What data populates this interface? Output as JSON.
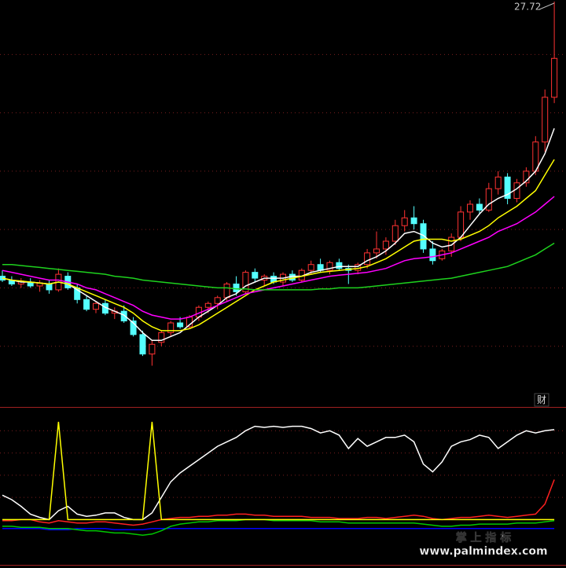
{
  "chart_data": [
    {
      "type": "candlestick",
      "max_label": "27.72",
      "up_color": "#ff3232",
      "down_color": "#54ffff",
      "ylim": [
        7,
        27.8
      ],
      "yticks": [
        10,
        13,
        16,
        19,
        22,
        25
      ],
      "grid": true,
      "open": [
        13.6,
        13.4,
        13.2,
        13.3,
        13.1,
        13.2,
        12.9,
        13.6,
        13.0,
        12.4,
        11.9,
        12.2,
        11.7,
        11.8,
        11.3,
        10.6,
        9.6,
        10.2,
        10.7,
        11.2,
        11.0,
        11.5,
        12.0,
        12.2,
        12.5,
        13.2,
        12.8,
        13.8,
        13.4,
        13.6,
        13.3,
        13.7,
        13.4,
        13.9,
        14.2,
        13.9,
        14.3,
        14.0,
        13.9,
        14.2,
        14.8,
        15.0,
        15.4,
        16.2,
        16.6,
        16.3,
        15.0,
        14.5,
        14.9,
        15.6,
        16.9,
        17.3,
        17.0,
        18.1,
        18.7,
        17.6,
        18.4,
        19.0,
        20.5,
        22.8
      ],
      "high": [
        13.9,
        13.6,
        13.5,
        13.5,
        13.4,
        13.4,
        14.0,
        13.8,
        13.2,
        12.6,
        12.3,
        12.4,
        12.0,
        12.1,
        11.5,
        10.8,
        10.3,
        10.8,
        11.3,
        11.5,
        11.6,
        12.1,
        12.3,
        12.6,
        13.3,
        13.6,
        13.9,
        14.0,
        13.7,
        13.8,
        13.8,
        13.9,
        14.0,
        14.4,
        14.5,
        14.4,
        14.5,
        14.2,
        14.3,
        15.0,
        15.9,
        15.6,
        16.5,
        17.0,
        17.2,
        16.5,
        15.4,
        15.0,
        15.8,
        17.2,
        17.5,
        17.6,
        18.4,
        19.0,
        18.9,
        18.6,
        19.2,
        20.8,
        23.2,
        27.72
      ],
      "low": [
        13.3,
        13.1,
        13.0,
        13.0,
        12.8,
        12.7,
        12.8,
        12.9,
        12.2,
        11.8,
        11.7,
        11.6,
        11.4,
        11.2,
        10.5,
        9.5,
        9.0,
        10.0,
        10.5,
        10.9,
        10.9,
        11.3,
        11.7,
        11.9,
        12.3,
        12.6,
        12.7,
        13.3,
        13.1,
        13.2,
        13.1,
        13.3,
        13.3,
        13.7,
        13.8,
        13.7,
        13.9,
        13.2,
        13.7,
        14.0,
        14.5,
        14.7,
        15.2,
        15.9,
        16.0,
        14.8,
        14.2,
        14.4,
        14.6,
        15.4,
        16.5,
        16.8,
        16.9,
        17.8,
        17.3,
        17.4,
        18.2,
        18.8,
        20.0,
        22.5
      ],
      "close": [
        13.4,
        13.2,
        13.35,
        13.1,
        13.25,
        12.9,
        13.7,
        13.0,
        12.4,
        11.9,
        12.2,
        11.7,
        11.8,
        11.3,
        10.6,
        9.6,
        10.1,
        10.7,
        11.2,
        11.0,
        11.5,
        12.0,
        12.2,
        12.5,
        13.2,
        12.8,
        13.8,
        13.5,
        13.6,
        13.3,
        13.7,
        13.4,
        13.9,
        14.2,
        13.9,
        14.3,
        14.0,
        13.9,
        14.2,
        14.8,
        15.0,
        15.4,
        16.2,
        16.6,
        16.3,
        15.0,
        14.4,
        14.9,
        15.6,
        16.9,
        17.3,
        17.0,
        18.1,
        18.7,
        17.6,
        18.4,
        19.0,
        20.5,
        22.8,
        24.8
      ],
      "series": [
        {
          "color": "#ffffff",
          "values": [
            13.5,
            13.4,
            13.3,
            13.3,
            13.25,
            13.2,
            13.3,
            13.2,
            12.9,
            12.6,
            12.3,
            12.0,
            11.8,
            11.6,
            11.2,
            10.7,
            10.3,
            10.3,
            10.5,
            10.7,
            11.1,
            11.5,
            11.8,
            12.1,
            12.5,
            12.7,
            13.1,
            13.3,
            13.5,
            13.5,
            13.5,
            13.6,
            13.6,
            13.8,
            13.9,
            14.0,
            14.1,
            14.1,
            14.1,
            14.4,
            14.6,
            14.9,
            15.3,
            15.8,
            15.9,
            15.7,
            15.3,
            15.1,
            15.2,
            15.6,
            16.2,
            16.8,
            17.3,
            17.6,
            17.8,
            18.1,
            18.5,
            19.0,
            19.9,
            21.2
          ]
        },
        {
          "color": "#ffff00",
          "values": [
            13.5,
            13.4,
            13.35,
            13.3,
            13.25,
            13.2,
            13.3,
            13.2,
            13.0,
            12.8,
            12.6,
            12.4,
            12.2,
            12.0,
            11.7,
            11.3,
            11.0,
            10.8,
            10.8,
            10.8,
            10.9,
            11.1,
            11.4,
            11.7,
            12.0,
            12.3,
            12.6,
            12.9,
            13.1,
            13.3,
            13.4,
            13.5,
            13.6,
            13.7,
            13.8,
            13.85,
            13.9,
            13.95,
            14.0,
            14.1,
            14.3,
            14.5,
            14.8,
            15.1,
            15.4,
            15.5,
            15.5,
            15.5,
            15.4,
            15.5,
            15.7,
            15.9,
            16.2,
            16.6,
            16.9,
            17.2,
            17.6,
            18.0,
            18.8,
            19.6
          ]
        },
        {
          "color": "#ff00ff",
          "values": [
            13.9,
            13.8,
            13.7,
            13.6,
            13.5,
            13.4,
            13.4,
            13.3,
            13.2,
            13.0,
            12.9,
            12.7,
            12.5,
            12.3,
            12.1,
            11.8,
            11.6,
            11.5,
            11.4,
            11.4,
            11.5,
            11.7,
            11.9,
            12.1,
            12.3,
            12.5,
            12.7,
            12.8,
            12.9,
            13.0,
            13.1,
            13.2,
            13.3,
            13.4,
            13.5,
            13.6,
            13.65,
            13.7,
            13.75,
            13.8,
            13.9,
            14.0,
            14.2,
            14.4,
            14.5,
            14.55,
            14.6,
            14.7,
            14.8,
            15.0,
            15.2,
            15.4,
            15.6,
            15.9,
            16.1,
            16.3,
            16.6,
            16.9,
            17.3,
            17.7
          ]
        },
        {
          "color": "#1ed21e",
          "values": [
            14.2,
            14.2,
            14.15,
            14.1,
            14.05,
            14.0,
            13.95,
            13.9,
            13.85,
            13.8,
            13.75,
            13.7,
            13.6,
            13.55,
            13.5,
            13.4,
            13.35,
            13.3,
            13.25,
            13.2,
            13.15,
            13.1,
            13.05,
            13.0,
            13.0,
            12.95,
            12.95,
            12.9,
            12.9,
            12.9,
            12.9,
            12.9,
            12.9,
            12.9,
            12.95,
            12.95,
            13.0,
            13.0,
            13.0,
            13.05,
            13.1,
            13.15,
            13.2,
            13.25,
            13.3,
            13.35,
            13.4,
            13.45,
            13.5,
            13.6,
            13.7,
            13.8,
            13.9,
            14.0,
            14.1,
            14.3,
            14.5,
            14.7,
            15.0,
            15.3
          ]
        }
      ]
    },
    {
      "type": "line",
      "ylim": [
        -40,
        100
      ],
      "yticks": [
        20,
        40,
        60,
        80
      ],
      "grid": true,
      "series": [
        {
          "color": "#0000ff",
          "values": [
            -8,
            -8,
            -8,
            -8,
            -8,
            -9,
            -9,
            -9,
            -8,
            -8,
            -8,
            -8,
            -9,
            -9,
            -9,
            -9,
            -8,
            -8,
            -8,
            -8,
            -8,
            -8,
            -8,
            -8,
            -8,
            -8,
            -8,
            -8,
            -8,
            -8,
            -8,
            -8,
            -8,
            -8,
            -8,
            -8,
            -8,
            -8,
            -8,
            -8,
            -8,
            -8,
            -8,
            -8,
            -8,
            -8,
            -8,
            -8,
            -8,
            -8,
            -8,
            -8,
            -8,
            -8,
            -8,
            -8,
            -8,
            -8,
            -8,
            -8
          ]
        },
        {
          "color": "#00c800",
          "values": [
            -6,
            -6,
            -7,
            -7,
            -7,
            -8,
            -8,
            -8,
            -9,
            -10,
            -10,
            -11,
            -12,
            -12,
            -13,
            -14,
            -13,
            -10,
            -6,
            -4,
            -3,
            -2,
            -2,
            -1,
            -1,
            -1,
            0,
            0,
            0,
            -1,
            -1,
            -1,
            -1,
            -1,
            -2,
            -2,
            -2,
            -3,
            -3,
            -3,
            -3,
            -3,
            -3,
            -3,
            -3,
            -4,
            -5,
            -6,
            -6,
            -5,
            -5,
            -4,
            -4,
            -4,
            -4,
            -3,
            -3,
            -3,
            -2,
            -1
          ]
        },
        {
          "color": "#ff2020",
          "values": [
            -1,
            -1,
            0,
            0,
            -2,
            -3,
            -1,
            -2,
            -3,
            -3,
            -2,
            -2,
            -3,
            -4,
            -5,
            -4,
            -2,
            0,
            1,
            2,
            2,
            3,
            3,
            4,
            4,
            5,
            5,
            4,
            4,
            3,
            3,
            3,
            3,
            2,
            2,
            2,
            1,
            1,
            1,
            2,
            2,
            1,
            2,
            3,
            4,
            3,
            1,
            0,
            1,
            2,
            2,
            3,
            4,
            3,
            2,
            3,
            4,
            5,
            14,
            36
          ]
        },
        {
          "color": "#ffffff",
          "values": [
            22,
            18,
            12,
            5,
            2,
            0,
            8,
            12,
            5,
            3,
            4,
            6,
            6,
            2,
            0,
            0,
            6,
            20,
            34,
            42,
            48,
            54,
            60,
            66,
            70,
            74,
            80,
            84,
            83,
            84,
            83,
            84,
            84,
            82,
            78,
            80,
            76,
            64,
            73,
            66,
            70,
            74,
            74,
            76,
            70,
            50,
            43,
            52,
            66,
            70,
            72,
            76,
            74,
            64,
            70,
            76,
            80,
            78,
            80,
            81
          ]
        },
        {
          "color": "#ffff00",
          "values": [
            0,
            0,
            0,
            0,
            0,
            0,
            88,
            0,
            0,
            0,
            0,
            0,
            0,
            0,
            0,
            0,
            88,
            0,
            0,
            0,
            0,
            0,
            0,
            0,
            0,
            0,
            0,
            0,
            0,
            0,
            0,
            0,
            0,
            0,
            0,
            0,
            0,
            0,
            0,
            0,
            0,
            0,
            0,
            0,
            0,
            0,
            0,
            0,
            0,
            0,
            0,
            0,
            0,
            0,
            0,
            0,
            0,
            0,
            0,
            0
          ]
        }
      ]
    }
  ],
  "button_label": "财",
  "watermark": {
    "title": "掌 上 指 标",
    "url": "www.palmindex.com"
  }
}
